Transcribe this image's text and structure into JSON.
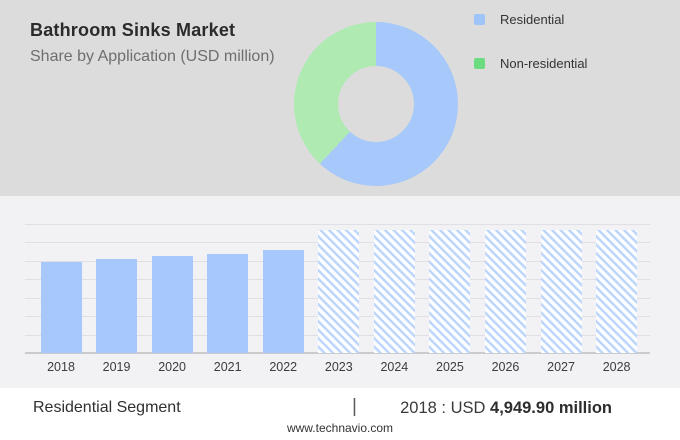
{
  "header": {
    "title": "Bathroom Sinks Market",
    "subtitle": "Share by Application (USD million)"
  },
  "legend": {
    "items": [
      {
        "label": "Residential",
        "color": "#9ec4f9"
      },
      {
        "label": "Non-residential",
        "color": "#6ddc80"
      }
    ]
  },
  "chart_data": [
    {
      "type": "pie",
      "donut": true,
      "title": "Share by Application",
      "slices": [
        {
          "label": "Residential",
          "value_pct": 62,
          "color": "#a6c8fa"
        },
        {
          "label": "Non-residential",
          "value_pct": 38,
          "color": "#aeeab1"
        }
      ],
      "start_angle_deg": 0,
      "legend_position": "right"
    },
    {
      "type": "bar",
      "title": "Residential Segment (USD million)",
      "categories": [
        "2018",
        "2019",
        "2020",
        "2021",
        "2022",
        "2023",
        "2024",
        "2025",
        "2026",
        "2027",
        "2028"
      ],
      "bars": [
        {
          "year": "2018",
          "value": 4949.9,
          "forecast": false
        },
        {
          "year": "2019",
          "value": 5110,
          "forecast": false
        },
        {
          "year": "2020",
          "value": 5240,
          "forecast": false
        },
        {
          "year": "2021",
          "value": 5400,
          "forecast": false
        },
        {
          "year": "2022",
          "value": 5590,
          "forecast": false
        },
        {
          "year": "2023",
          "value": null,
          "forecast": true
        },
        {
          "year": "2024",
          "value": null,
          "forecast": true
        },
        {
          "year": "2025",
          "value": null,
          "forecast": true
        },
        {
          "year": "2026",
          "value": null,
          "forecast": true
        },
        {
          "year": "2027",
          "value": null,
          "forecast": true
        },
        {
          "year": "2028",
          "value": null,
          "forecast": true
        }
      ],
      "ylim": [
        0,
        7000
      ],
      "gridline_interval": 1000,
      "grid": true,
      "forecast_style": "hatched"
    }
  ],
  "footer": {
    "segment_label": "Residential Segment",
    "divider": "|",
    "stat_prefix": "2018 : USD",
    "stat_value": "4,949.90 million",
    "website": "www.technavio.com"
  },
  "colors": {
    "band_bg": "#dcdcdc",
    "chart_bg": "#f2f2f4",
    "footer_bg": "#ffffff",
    "bar_blue": "#a6c8fa",
    "hatch_bg": "#fcfdff",
    "hatch_stripe": "#bdd6fa",
    "gridline": "#e0e0e4",
    "baseline": "#cbcbcd",
    "text_dark": "#2b2b2b",
    "text_gray": "#6e6e6e"
  }
}
